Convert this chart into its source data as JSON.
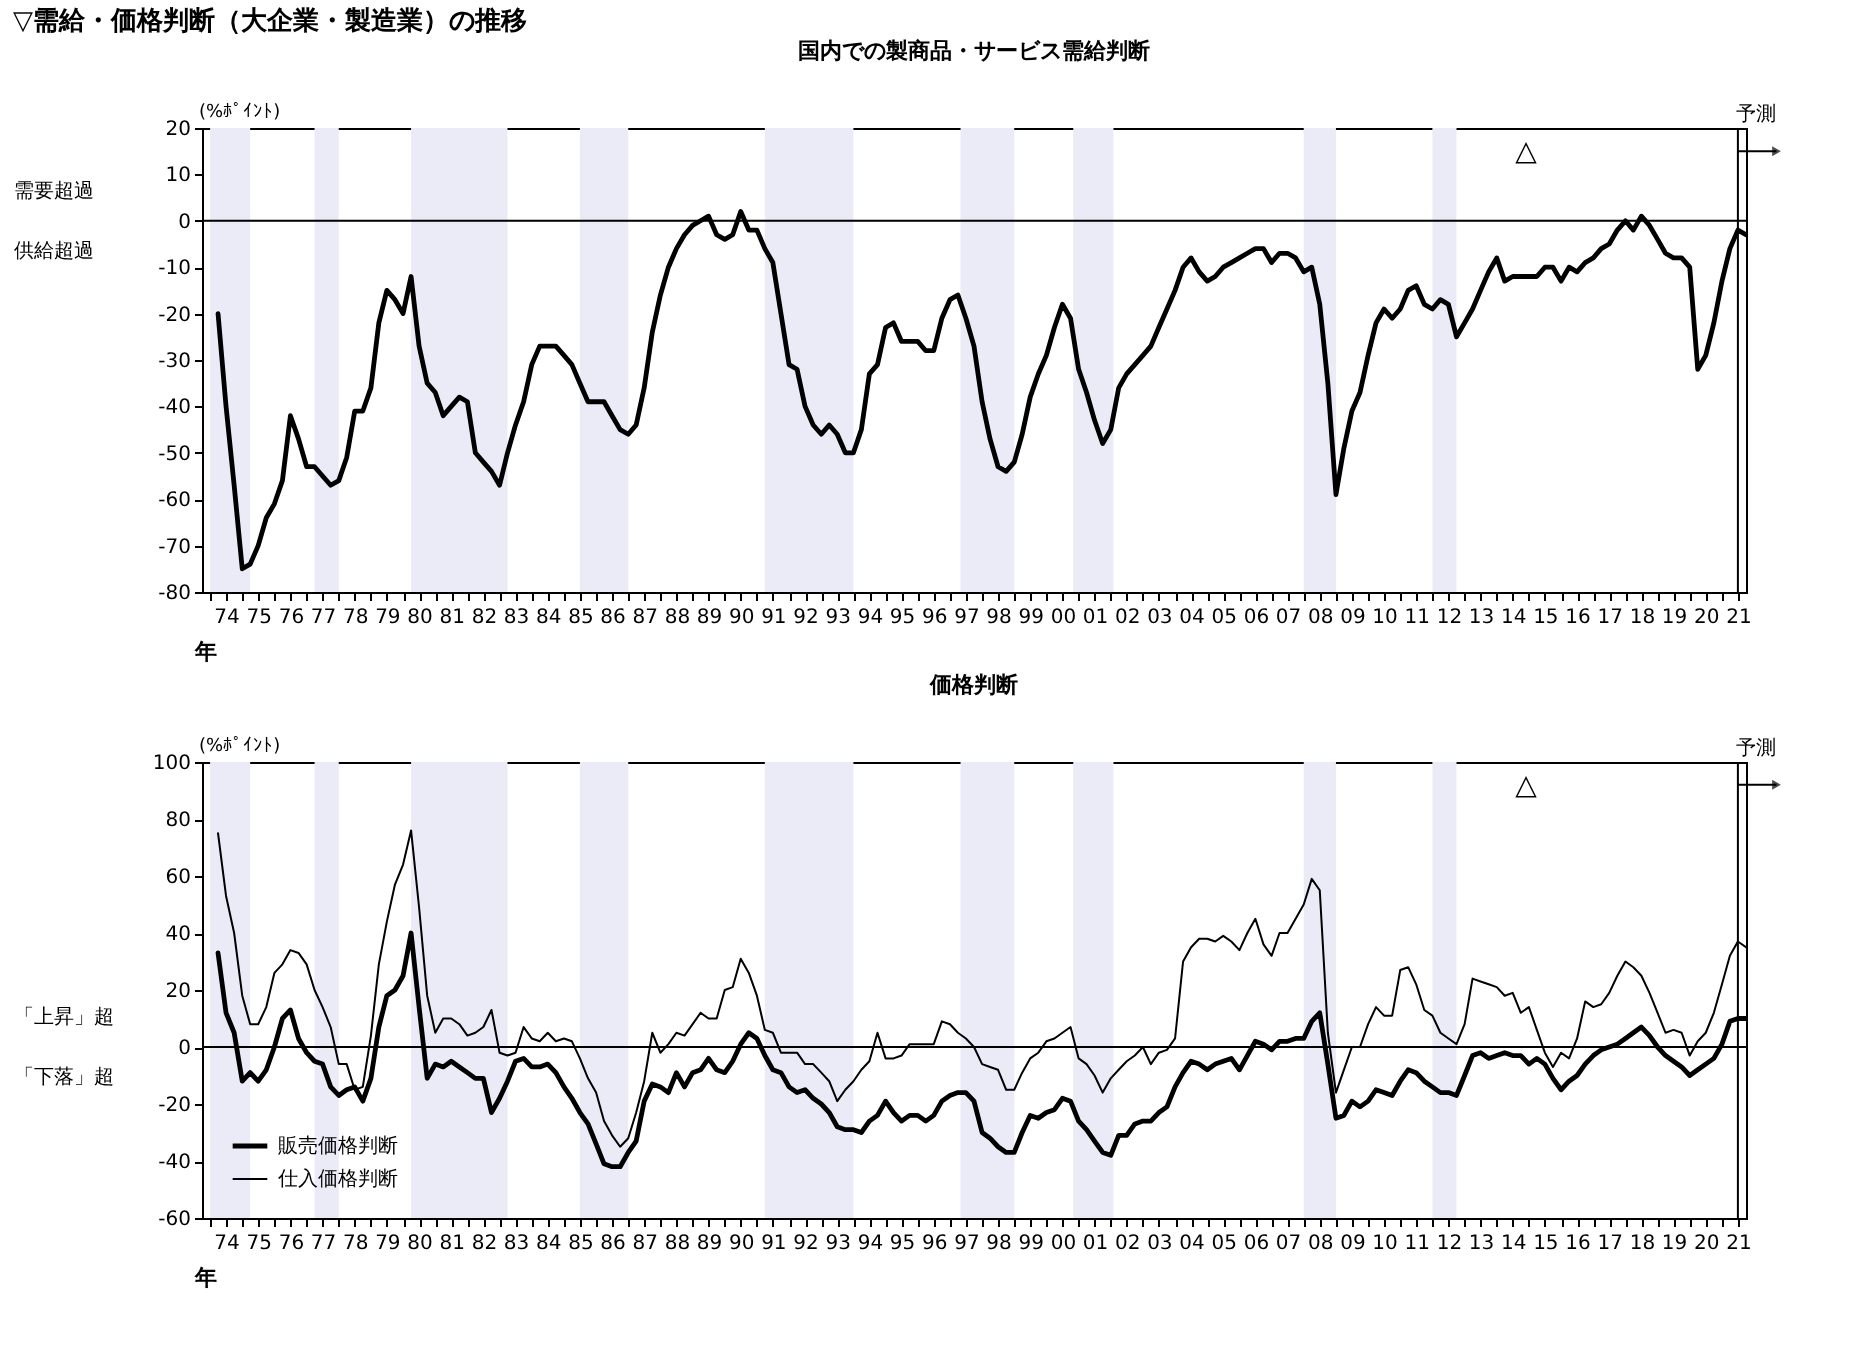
{
  "chart_data": [
    {
      "type": "line",
      "title": "▽需給・価格判断（大企業・製造業）の推移",
      "subtitle": "国内での製商品・サービス需給判断",
      "xlabel": "年",
      "ylabel": "(%ﾎﾟｲﾝﾄ)",
      "xlim": [
        "1973-10",
        "2021-10"
      ],
      "ylim": [
        -80,
        20
      ],
      "yticks": [
        -80,
        -70,
        -60,
        -50,
        -40,
        -30,
        -20,
        -10,
        0,
        10,
        20
      ],
      "xticks": [
        {
          "value": "1974",
          "label": null
        },
        {
          "value": "1974-07",
          "label": "74"
        },
        {
          "value": "1975",
          "label": null
        },
        {
          "value": "1975-07",
          "label": "75"
        },
        {
          "value": "1976",
          "label": null
        },
        {
          "value": "1976-07",
          "label": "76"
        },
        {
          "value": "1977",
          "label": null
        },
        {
          "value": "1977-07",
          "label": "77"
        },
        {
          "value": "1978",
          "label": null
        },
        {
          "value": "1978-07",
          "label": "78"
        },
        {
          "value": "1979",
          "label": null
        },
        {
          "value": "1979-07",
          "label": "79"
        },
        {
          "value": "1980",
          "label": null
        },
        {
          "value": "1980-07",
          "label": "80"
        },
        {
          "value": "1981",
          "label": null
        },
        {
          "value": "1981-07",
          "label": "81"
        },
        {
          "value": "1982",
          "label": null
        },
        {
          "value": "1982-07",
          "label": "82"
        },
        {
          "value": "1983",
          "label": null
        },
        {
          "value": "1983-07",
          "label": "83"
        },
        {
          "value": "1984",
          "label": null
        },
        {
          "value": "1984-07",
          "label": "84"
        },
        {
          "value": "1985",
          "label": null
        },
        {
          "value": "1985-07",
          "label": "85"
        },
        {
          "value": "1986",
          "label": null
        },
        {
          "value": "1986-07",
          "label": "86"
        },
        {
          "value": "1987",
          "label": null
        },
        {
          "value": "1987-07",
          "label": "87"
        },
        {
          "value": "1988",
          "label": null
        },
        {
          "value": "1988-07",
          "label": "88"
        },
        {
          "value": "1989",
          "label": null
        },
        {
          "value": "1989-07",
          "label": "89"
        },
        {
          "value": "1990",
          "label": null
        },
        {
          "value": "1990-07",
          "label": "90"
        },
        {
          "value": "1991",
          "label": null
        },
        {
          "value": "1991-07",
          "label": "91"
        },
        {
          "value": "1992",
          "label": null
        },
        {
          "value": "1992-07",
          "label": "92"
        },
        {
          "value": "1993",
          "label": null
        },
        {
          "value": "1993-07",
          "label": "93"
        },
        {
          "value": "1994",
          "label": null
        },
        {
          "value": "1994-07",
          "label": "94"
        },
        {
          "value": "1995",
          "label": null
        },
        {
          "value": "1995-07",
          "label": "95"
        },
        {
          "value": "1996",
          "label": null
        },
        {
          "value": "1996-07",
          "label": "96"
        },
        {
          "value": "1997",
          "label": null
        },
        {
          "value": "1997-07",
          "label": "97"
        },
        {
          "value": "1998",
          "label": null
        },
        {
          "value": "1998-07",
          "label": "98"
        },
        {
          "value": "1999",
          "label": null
        },
        {
          "value": "1999-07",
          "label": "99"
        },
        {
          "value": "2000",
          "label": null
        },
        {
          "value": "2000-07",
          "label": "00"
        },
        {
          "value": "2001",
          "label": null
        },
        {
          "value": "2001-07",
          "label": "01"
        },
        {
          "value": "2002",
          "label": null
        },
        {
          "value": "2002-07",
          "label": "02"
        },
        {
          "value": "2003",
          "label": null
        },
        {
          "value": "2003-07",
          "label": "03"
        },
        {
          "value": "2004",
          "label": null
        },
        {
          "value": "2004-07",
          "label": "04"
        },
        {
          "value": "2005",
          "label": null
        },
        {
          "value": "2005-07",
          "label": "05"
        },
        {
          "value": "2006",
          "label": null
        },
        {
          "value": "2006-07",
          "label": "06"
        },
        {
          "value": "2007",
          "label": null
        },
        {
          "value": "2007-07",
          "label": "07"
        },
        {
          "value": "2008",
          "label": null
        },
        {
          "value": "2008-07",
          "label": "08"
        },
        {
          "value": "2009",
          "label": null
        },
        {
          "value": "2009-07",
          "label": "09"
        },
        {
          "value": "2010",
          "label": null
        },
        {
          "value": "2010-07",
          "label": "10"
        },
        {
          "value": "2011",
          "label": null
        },
        {
          "value": "2011-07",
          "label": "11"
        },
        {
          "value": "2012",
          "label": null
        },
        {
          "value": "2012-07",
          "label": "12"
        },
        {
          "value": "2013",
          "label": null
        },
        {
          "value": "2013-07",
          "label": "13"
        },
        {
          "value": "2014",
          "label": null
        },
        {
          "value": "2014-07",
          "label": "14"
        },
        {
          "value": "2015",
          "label": null
        },
        {
          "value": "2015-07",
          "label": "15"
        },
        {
          "value": "2016",
          "label": null
        },
        {
          "value": "2016-07",
          "label": "16"
        },
        {
          "value": "2017",
          "label": null
        },
        {
          "value": "2017-07",
          "label": "17"
        },
        {
          "value": "2018",
          "label": null
        },
        {
          "value": "2018-07",
          "label": "18"
        },
        {
          "value": "2019",
          "label": null
        },
        {
          "value": "2019-07",
          "label": "19"
        },
        {
          "value": "2020",
          "label": null
        },
        {
          "value": "2020-07",
          "label": "20"
        },
        {
          "value": "2021",
          "label": null
        },
        {
          "value": "2021-07",
          "label": "21"
        }
      ],
      "x": [
        "1974-04",
        "1974-07",
        "1974-10",
        "1975-01",
        "1975-04",
        "1975-07",
        "1975-10",
        "1976-01",
        "1976-04",
        "1976-07",
        "1976-10",
        "1977-01",
        "1977-04",
        "1977-07",
        "1977-10",
        "1978-01",
        "1978-04",
        "1978-07",
        "1978-10",
        "1979-01",
        "1979-04",
        "1979-07",
        "1979-10",
        "1980-01",
        "1980-04",
        "1980-07",
        "1980-10",
        "1981-01",
        "1981-04",
        "1981-07",
        "1981-10",
        "1982-01",
        "1982-04",
        "1982-07",
        "1982-10",
        "1983-01",
        "1983-04",
        "1983-07",
        "1983-10",
        "1984-01",
        "1984-04",
        "1984-07",
        "1984-10",
        "1985-01",
        "1985-04",
        "1985-07",
        "1985-10",
        "1986-01",
        "1986-04",
        "1986-07",
        "1986-10",
        "1987-01",
        "1987-04",
        "1987-07",
        "1987-10",
        "1988-01",
        "1988-04",
        "1988-07",
        "1988-10",
        "1989-01",
        "1989-04",
        "1989-07",
        "1989-10",
        "1990-01",
        "1990-04",
        "1990-07",
        "1990-10",
        "1991-01",
        "1991-04",
        "1991-07",
        "1991-10",
        "1992-01",
        "1992-04",
        "1992-07",
        "1992-10",
        "1993-01",
        "1993-04",
        "1993-07",
        "1993-10",
        "1994-01",
        "1994-04",
        "1994-07",
        "1994-10",
        "1995-01",
        "1995-04",
        "1995-07",
        "1995-10",
        "1996-01",
        "1996-04",
        "1996-07",
        "1996-10",
        "1997-01",
        "1997-04",
        "1997-07",
        "1997-10",
        "1998-01",
        "1998-04",
        "1998-07",
        "1998-10",
        "1999-01",
        "1999-04",
        "1999-07",
        "1999-10",
        "2000-01",
        "2000-04",
        "2000-07",
        "2000-10",
        "2001-01",
        "2001-04",
        "2001-07",
        "2001-10",
        "2002-01",
        "2002-04",
        "2002-07",
        "2002-10",
        "2003-01",
        "2003-04",
        "2003-07",
        "2003-10",
        "2004-01",
        "2004-04",
        "2004-07",
        "2004-10",
        "2005-01",
        "2005-04",
        "2005-07",
        "2005-10",
        "2006-01",
        "2006-04",
        "2006-07",
        "2006-10",
        "2007-01",
        "2007-04",
        "2007-07",
        "2007-10",
        "2008-01",
        "2008-04",
        "2008-07",
        "2008-10",
        "2009-01",
        "2009-04",
        "2009-07",
        "2009-10",
        "2010-01",
        "2010-04",
        "2010-07",
        "2010-10",
        "2011-01",
        "2011-04",
        "2011-07",
        "2011-10",
        "2012-01",
        "2012-04",
        "2012-07",
        "2012-10",
        "2013-01",
        "2013-04",
        "2013-07",
        "2013-10",
        "2014-01",
        "2014-04",
        "2014-07",
        "2014-10",
        "2015-01",
        "2015-04",
        "2015-07",
        "2015-10",
        "2016-01",
        "2016-04",
        "2016-07",
        "2016-10",
        "2017-01",
        "2017-04",
        "2017-07",
        "2017-10",
        "2018-01",
        "2018-04",
        "2018-07",
        "2018-10",
        "2019-01",
        "2019-04",
        "2019-07",
        "2019-10",
        "2020-01",
        "2020-04",
        "2020-07",
        "2020-10",
        "2021-01",
        "2021-04",
        "2021-07",
        "2021-10"
      ],
      "series": [
        {
          "color": "#000000",
          "values": [
            -20,
            -40,
            -57,
            -75,
            -74,
            -70,
            -64,
            -61,
            -56,
            -42,
            -47,
            -53,
            -53,
            -55,
            -57,
            -56,
            -51,
            -41,
            -41,
            -36,
            -22,
            -15,
            -17,
            -20,
            -12,
            -27,
            -35,
            -37,
            -42,
            -40,
            -38,
            -39,
            -50,
            -52,
            -54,
            -57,
            -50,
            -44,
            -39,
            -31,
            -27,
            -27,
            -27,
            -29,
            -31,
            -35,
            -39,
            -39,
            -39,
            -42,
            -45,
            -46,
            -44,
            -36,
            -24,
            -16,
            -10,
            -6,
            -3,
            -1,
            0,
            1,
            -3,
            -4,
            -3,
            2,
            -2,
            -2,
            -6,
            -9,
            -20,
            -31,
            -32,
            -40,
            -44,
            -46,
            -44,
            -46,
            -50,
            -50,
            -45,
            -33,
            -31,
            -23,
            -22,
            -26,
            -26,
            -26,
            -28,
            -28,
            -21,
            -17,
            -16,
            -21,
            -27,
            -39,
            -47,
            -53,
            -54,
            -52,
            -46,
            -38,
            -33,
            -29,
            -23,
            -18,
            -21,
            -32,
            -37,
            -43,
            -48,
            -45,
            -36,
            -33,
            -31,
            -29,
            -27,
            -23,
            -19,
            -15,
            -10,
            -8,
            -11,
            -13,
            -12,
            -10,
            -9,
            -8,
            -7,
            -6,
            -6,
            -9,
            -7,
            -7,
            -8,
            -11,
            -10,
            -18,
            -35,
            -59,
            -49,
            -41,
            -37,
            -29,
            -22,
            -19,
            -21,
            -19,
            -15,
            -14,
            -18,
            -19,
            -17,
            -18,
            -25,
            -22,
            -19,
            -15,
            -11,
            -8,
            -13,
            -12,
            -12,
            -12,
            -12,
            -10,
            -10,
            -13,
            -10,
            -11,
            -9,
            -8,
            -6,
            -5,
            -2,
            0,
            -2,
            1,
            -1,
            -4,
            -7,
            -8,
            -8,
            -10,
            -32,
            -29,
            -22,
            -13,
            -6,
            -2,
            -3
          ]
        }
      ],
      "bands": [
        {
          "axis": "x",
          "from": "1974-01",
          "to": "1975-04",
          "color": "#ebebf8"
        },
        {
          "axis": "x",
          "from": "1977-04",
          "to": "1978-01",
          "color": "#ebebf8"
        },
        {
          "axis": "x",
          "from": "1980-04",
          "to": "1983-04",
          "color": "#ebebf8"
        },
        {
          "axis": "x",
          "from": "1985-07",
          "to": "1987-01",
          "color": "#ebebf8"
        },
        {
          "axis": "x",
          "from": "1991-04",
          "to": "1994-01",
          "color": "#ebebf8"
        },
        {
          "axis": "x",
          "from": "1997-05",
          "to": "1999-01",
          "color": "#ebebf8"
        },
        {
          "axis": "x",
          "from": "2000-11",
          "to": "2002-02",
          "color": "#ebebf8"
        },
        {
          "axis": "x",
          "from": "2008-01",
          "to": "2009-01",
          "color": "#ebebf8"
        },
        {
          "axis": "x",
          "from": "2012-01",
          "to": "2012-10",
          "color": "#ebebf8"
        }
      ],
      "ref_lines": [
        {
          "axis": "y",
          "value": 0,
          "color": "#000000"
        },
        {
          "axis": "x",
          "value": "2021-07",
          "label": "予測",
          "color": "#000000"
        }
      ],
      "annotations": [
        "△",
        "需要超過",
        "供給超過"
      ]
    },
    {
      "type": "line",
      "title": "価格判断",
      "xlabel": "年",
      "ylabel": "(%ﾎﾟｲﾝﾄ)",
      "xlim": [
        "1973-10",
        "2021-10"
      ],
      "ylim": [
        -60,
        100
      ],
      "yticks": [
        -60,
        -40,
        -20,
        0,
        20,
        40,
        60,
        80,
        100
      ],
      "xticks": [
        {
          "value": "1974",
          "label": null
        },
        {
          "value": "1974-07",
          "label": "74"
        },
        {
          "value": "1975",
          "label": null
        },
        {
          "value": "1975-07",
          "label": "75"
        },
        {
          "value": "1976",
          "label": null
        },
        {
          "value": "1976-07",
          "label": "76"
        },
        {
          "value": "1977",
          "label": null
        },
        {
          "value": "1977-07",
          "label": "77"
        },
        {
          "value": "1978",
          "label": null
        },
        {
          "value": "1978-07",
          "label": "78"
        },
        {
          "value": "1979",
          "label": null
        },
        {
          "value": "1979-07",
          "label": "79"
        },
        {
          "value": "1980",
          "label": null
        },
        {
          "value": "1980-07",
          "label": "80"
        },
        {
          "value": "1981",
          "label": null
        },
        {
          "value": "1981-07",
          "label": "81"
        },
        {
          "value": "1982",
          "label": null
        },
        {
          "value": "1982-07",
          "label": "82"
        },
        {
          "value": "1983",
          "label": null
        },
        {
          "value": "1983-07",
          "label": "83"
        },
        {
          "value": "1984",
          "label": null
        },
        {
          "value": "1984-07",
          "label": "84"
        },
        {
          "value": "1985",
          "label": null
        },
        {
          "value": "1985-07",
          "label": "85"
        },
        {
          "value": "1986",
          "label": null
        },
        {
          "value": "1986-07",
          "label": "86"
        },
        {
          "value": "1987",
          "label": null
        },
        {
          "value": "1987-07",
          "label": "87"
        },
        {
          "value": "1988",
          "label": null
        },
        {
          "value": "1988-07",
          "label": "88"
        },
        {
          "value": "1989",
          "label": null
        },
        {
          "value": "1989-07",
          "label": "89"
        },
        {
          "value": "1990",
          "label": null
        },
        {
          "value": "1990-07",
          "label": "90"
        },
        {
          "value": "1991",
          "label": null
        },
        {
          "value": "1991-07",
          "label": "91"
        },
        {
          "value": "1992",
          "label": null
        },
        {
          "value": "1992-07",
          "label": "92"
        },
        {
          "value": "1993",
          "label": null
        },
        {
          "value": "1993-07",
          "label": "93"
        },
        {
          "value": "1994",
          "label": null
        },
        {
          "value": "1994-07",
          "label": "94"
        },
        {
          "value": "1995",
          "label": null
        },
        {
          "value": "1995-07",
          "label": "95"
        },
        {
          "value": "1996",
          "label": null
        },
        {
          "value": "1996-07",
          "label": "96"
        },
        {
          "value": "1997",
          "label": null
        },
        {
          "value": "1997-07",
          "label": "97"
        },
        {
          "value": "1998",
          "label": null
        },
        {
          "value": "1998-07",
          "label": "98"
        },
        {
          "value": "1999",
          "label": null
        },
        {
          "value": "1999-07",
          "label": "99"
        },
        {
          "value": "2000",
          "label": null
        },
        {
          "value": "2000-07",
          "label": "00"
        },
        {
          "value": "2001",
          "label": null
        },
        {
          "value": "2001-07",
          "label": "01"
        },
        {
          "value": "2002",
          "label": null
        },
        {
          "value": "2002-07",
          "label": "02"
        },
        {
          "value": "2003",
          "label": null
        },
        {
          "value": "2003-07",
          "label": "03"
        },
        {
          "value": "2004",
          "label": null
        },
        {
          "value": "2004-07",
          "label": "04"
        },
        {
          "value": "2005",
          "label": null
        },
        {
          "value": "2005-07",
          "label": "05"
        },
        {
          "value": "2006",
          "label": null
        },
        {
          "value": "2006-07",
          "label": "06"
        },
        {
          "value": "2007",
          "label": null
        },
        {
          "value": "2007-07",
          "label": "07"
        },
        {
          "value": "2008",
          "label": null
        },
        {
          "value": "2008-07",
          "label": "08"
        },
        {
          "value": "2009",
          "label": null
        },
        {
          "value": "2009-07",
          "label": "09"
        },
        {
          "value": "2010",
          "label": null
        },
        {
          "value": "2010-07",
          "label": "10"
        },
        {
          "value": "2011",
          "label": null
        },
        {
          "value": "2011-07",
          "label": "11"
        },
        {
          "value": "2012",
          "label": null
        },
        {
          "value": "2012-07",
          "label": "12"
        },
        {
          "value": "2013",
          "label": null
        },
        {
          "value": "2013-07",
          "label": "13"
        },
        {
          "value": "2014",
          "label": null
        },
        {
          "value": "2014-07",
          "label": "14"
        },
        {
          "value": "2015",
          "label": null
        },
        {
          "value": "2015-07",
          "label": "15"
        },
        {
          "value": "2016",
          "label": null
        },
        {
          "value": "2016-07",
          "label": "16"
        },
        {
          "value": "2017",
          "label": null
        },
        {
          "value": "2017-07",
          "label": "17"
        },
        {
          "value": "2018",
          "label": null
        },
        {
          "value": "2018-07",
          "label": "18"
        },
        {
          "value": "2019",
          "label": null
        },
        {
          "value": "2019-07",
          "label": "19"
        },
        {
          "value": "2020",
          "label": null
        },
        {
          "value": "2020-07",
          "label": "20"
        },
        {
          "value": "2021",
          "label": null
        },
        {
          "value": "2021-07",
          "label": "21"
        }
      ],
      "x": [
        "1974-04",
        "1974-07",
        "1974-10",
        "1975-01",
        "1975-04",
        "1975-07",
        "1975-10",
        "1976-01",
        "1976-04",
        "1976-07",
        "1976-10",
        "1977-01",
        "1977-04",
        "1977-07",
        "1977-10",
        "1978-01",
        "1978-04",
        "1978-07",
        "1978-10",
        "1979-01",
        "1979-04",
        "1979-07",
        "1979-10",
        "1980-01",
        "1980-04",
        "1980-07",
        "1980-10",
        "1981-01",
        "1981-04",
        "1981-07",
        "1981-10",
        "1982-01",
        "1982-04",
        "1982-07",
        "1982-10",
        "1983-01",
        "1983-04",
        "1983-07",
        "1983-10",
        "1984-01",
        "1984-04",
        "1984-07",
        "1984-10",
        "1985-01",
        "1985-04",
        "1985-07",
        "1985-10",
        "1986-01",
        "1986-04",
        "1986-07",
        "1986-10",
        "1987-01",
        "1987-04",
        "1987-07",
        "1987-10",
        "1988-01",
        "1988-04",
        "1988-07",
        "1988-10",
        "1989-01",
        "1989-04",
        "1989-07",
        "1989-10",
        "1990-01",
        "1990-04",
        "1990-07",
        "1990-10",
        "1991-01",
        "1991-04",
        "1991-07",
        "1991-10",
        "1992-01",
        "1992-04",
        "1992-07",
        "1992-10",
        "1993-01",
        "1993-04",
        "1993-07",
        "1993-10",
        "1994-01",
        "1994-04",
        "1994-07",
        "1994-10",
        "1995-01",
        "1995-04",
        "1995-07",
        "1995-10",
        "1996-01",
        "1996-04",
        "1996-07",
        "1996-10",
        "1997-01",
        "1997-04",
        "1997-07",
        "1997-10",
        "1998-01",
        "1998-04",
        "1998-07",
        "1998-10",
        "1999-01",
        "1999-04",
        "1999-07",
        "1999-10",
        "2000-01",
        "2000-04",
        "2000-07",
        "2000-10",
        "2001-01",
        "2001-04",
        "2001-07",
        "2001-10",
        "2002-01",
        "2002-04",
        "2002-07",
        "2002-10",
        "2003-01",
        "2003-04",
        "2003-07",
        "2003-10",
        "2004-01",
        "2004-04",
        "2004-07",
        "2004-10",
        "2005-01",
        "2005-04",
        "2005-07",
        "2005-10",
        "2006-01",
        "2006-04",
        "2006-07",
        "2006-10",
        "2007-01",
        "2007-04",
        "2007-07",
        "2007-10",
        "2008-01",
        "2008-04",
        "2008-07",
        "2008-10",
        "2009-01",
        "2009-04",
        "2009-07",
        "2009-10",
        "2010-01",
        "2010-04",
        "2010-07",
        "2010-10",
        "2011-01",
        "2011-04",
        "2011-07",
        "2011-10",
        "2012-01",
        "2012-04",
        "2012-07",
        "2012-10",
        "2013-01",
        "2013-04",
        "2013-07",
        "2013-10",
        "2014-01",
        "2014-04",
        "2014-07",
        "2014-10",
        "2015-01",
        "2015-04",
        "2015-07",
        "2015-10",
        "2016-01",
        "2016-04",
        "2016-07",
        "2016-10",
        "2017-01",
        "2017-04",
        "2017-07",
        "2017-10",
        "2018-01",
        "2018-04",
        "2018-07",
        "2018-10",
        "2019-01",
        "2019-04",
        "2019-07",
        "2019-10",
        "2020-01",
        "2020-04",
        "2020-07",
        "2020-10",
        "2021-01",
        "2021-04",
        "2021-07",
        "2021-10"
      ],
      "legend": "bottom left",
      "series": [
        {
          "name": "販売価格判断",
          "color": "#000000",
          "values": [
            33,
            12,
            5,
            -12,
            -9,
            -12,
            -8,
            0,
            10,
            13,
            3,
            -2,
            -5,
            -6,
            -14,
            -17,
            -15,
            -14,
            -19,
            -11,
            7,
            18,
            20,
            25,
            40,
            14,
            -11,
            -6,
            -7,
            -5,
            -7,
            -9,
            -11,
            -11,
            -23,
            -18,
            -12,
            -5,
            -4,
            -7,
            -7,
            -6,
            -9,
            -14,
            -18,
            -23,
            -27,
            -34,
            -41,
            -42,
            -42,
            -37,
            -33,
            -19,
            -13,
            -14,
            -16,
            -9,
            -14,
            -9,
            -8,
            -4,
            -8,
            -9,
            -5,
            1,
            5,
            3,
            -3,
            -8,
            -9,
            -14,
            -16,
            -15,
            -18,
            -20,
            -23,
            -28,
            -29,
            -29,
            -30,
            -26,
            -24,
            -19,
            -23,
            -26,
            -24,
            -24,
            -26,
            -24,
            -19,
            -17,
            -16,
            -16,
            -19,
            -30,
            -32,
            -35,
            -37,
            -37,
            -30,
            -24,
            -25,
            -23,
            -22,
            -18,
            -19,
            -26,
            -29,
            -33,
            -37,
            -38,
            -31,
            -31,
            -27,
            -26,
            -26,
            -23,
            -21,
            -14,
            -9,
            -5,
            -6,
            -8,
            -6,
            -5,
            -4,
            -8,
            -3,
            2,
            1,
            -1,
            2,
            2,
            3,
            3,
            9,
            12,
            -6,
            -25,
            -24,
            -19,
            -21,
            -19,
            -15,
            -16,
            -17,
            -12,
            -8,
            -9,
            -12,
            -14,
            -16,
            -16,
            -17,
            -10,
            -3,
            -2,
            -4,
            -3,
            -2,
            -3,
            -3,
            -6,
            -4,
            -6,
            -11,
            -15,
            -12,
            -10,
            -6,
            -3,
            -1,
            0,
            1,
            3,
            5,
            7,
            4,
            0,
            -3,
            -5,
            -7,
            -10,
            -8,
            -6,
            -4,
            1,
            9,
            10,
            10
          ]
        },
        {
          "name": "仕入価格判断",
          "color": "#000000",
          "values": [
            75,
            53,
            40,
            18,
            8,
            8,
            14,
            26,
            29,
            34,
            33,
            29,
            20,
            14,
            7,
            -6,
            -6,
            -15,
            -14,
            4,
            29,
            44,
            57,
            64,
            76,
            49,
            18,
            5,
            10,
            10,
            8,
            4,
            5,
            7,
            13,
            -2,
            -3,
            -2,
            7,
            3,
            2,
            5,
            2,
            3,
            2,
            -4,
            -11,
            -16,
            -26,
            -31,
            -35,
            -32,
            -23,
            -12,
            5,
            -2,
            1,
            5,
            4,
            8,
            12,
            10,
            10,
            20,
            21,
            31,
            26,
            18,
            6,
            5,
            -2,
            -2,
            -2,
            -6,
            -6,
            -9,
            -12,
            -19,
            -15,
            -12,
            -8,
            -5,
            5,
            -4,
            -4,
            -3,
            1,
            1,
            1,
            1,
            9,
            8,
            5,
            3,
            0,
            -6,
            -7,
            -8,
            -15,
            -15,
            -9,
            -4,
            -2,
            2,
            3,
            5,
            7,
            -4,
            -6,
            -10,
            -16,
            -11,
            -8,
            -5,
            -3,
            0,
            -6,
            -2,
            -1,
            3,
            30,
            35,
            38,
            38,
            37,
            39,
            37,
            34,
            40,
            45,
            36,
            32,
            40,
            40,
            45,
            50,
            59,
            55,
            5,
            -16,
            -8,
            0,
            0,
            8,
            14,
            11,
            11,
            27,
            28,
            22,
            13,
            11,
            5,
            3,
            1,
            8,
            24,
            23,
            22,
            21,
            18,
            19,
            12,
            14,
            6,
            -2,
            -7,
            -2,
            -4,
            3,
            16,
            14,
            15,
            19,
            25,
            30,
            28,
            25,
            19,
            12,
            5,
            6,
            5,
            -3,
            2,
            5,
            12,
            22,
            32,
            37,
            35
          ]
        }
      ],
      "bands": [
        {
          "axis": "x",
          "from": "1974-01",
          "to": "1975-04",
          "color": "#ebebf8"
        },
        {
          "axis": "x",
          "from": "1977-04",
          "to": "1978-01",
          "color": "#ebebf8"
        },
        {
          "axis": "x",
          "from": "1980-04",
          "to": "1983-04",
          "color": "#ebebf8"
        },
        {
          "axis": "x",
          "from": "1985-07",
          "to": "1987-01",
          "color": "#ebebf8"
        },
        {
          "axis": "x",
          "from": "1991-04",
          "to": "1994-01",
          "color": "#ebebf8"
        },
        {
          "axis": "x",
          "from": "1997-05",
          "to": "1999-01",
          "color": "#ebebf8"
        },
        {
          "axis": "x",
          "from": "2000-11",
          "to": "2002-02",
          "color": "#ebebf8"
        },
        {
          "axis": "x",
          "from": "2008-01",
          "to": "2009-01",
          "color": "#ebebf8"
        },
        {
          "axis": "x",
          "from": "2012-01",
          "to": "2012-10",
          "color": "#ebebf8"
        }
      ],
      "ref_lines": [
        {
          "axis": "y",
          "value": 0,
          "color": "#000000"
        },
        {
          "axis": "x",
          "value": "2021-07",
          "label": "予測",
          "color": "#000000"
        }
      ],
      "annotations": [
        "△",
        "「上昇」超",
        "「下落」超"
      ]
    }
  ]
}
